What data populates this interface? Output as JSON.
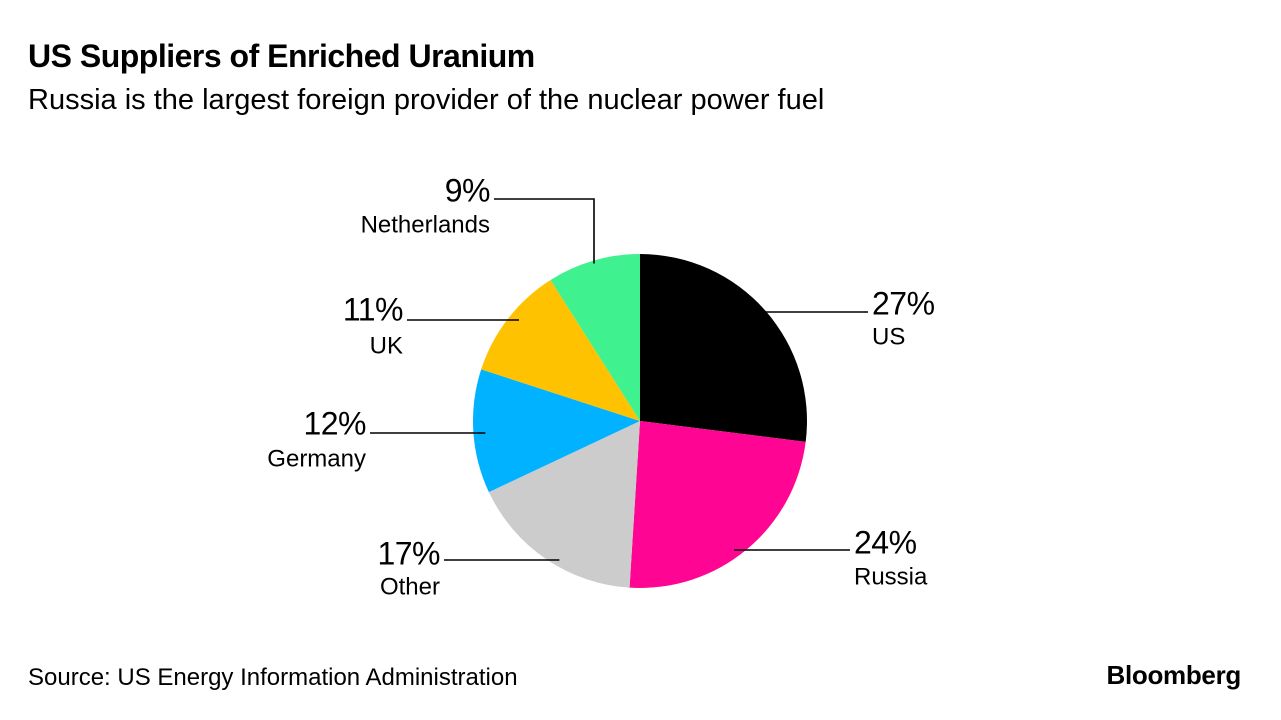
{
  "header": {
    "title": "US Suppliers of Enriched Uranium",
    "subtitle": "Russia is the largest foreign provider of the nuclear power fuel"
  },
  "footer": {
    "source": "Source: US Energy Information Administration",
    "brand": "Bloomberg"
  },
  "chart_data": {
    "type": "pie",
    "title": "US Suppliers of Enriched Uranium",
    "subtitle": "Russia is the largest foreign provider of the nuclear power fuel",
    "start": "12 o'clock, clockwise",
    "slices": [
      {
        "label": "US",
        "value": 27,
        "pct_label": "27%",
        "color": "#000000"
      },
      {
        "label": "Russia",
        "value": 24,
        "pct_label": "24%",
        "color": "#ff0593"
      },
      {
        "label": "Other",
        "value": 17,
        "pct_label": "17%",
        "color": "#cccccc"
      },
      {
        "label": "Germany",
        "value": 12,
        "pct_label": "12%",
        "color": "#00b2ff"
      },
      {
        "label": "UK",
        "value": 11,
        "pct_label": "11%",
        "color": "#ffc200"
      },
      {
        "label": "Netherlands",
        "value": 9,
        "pct_label": "9%",
        "color": "#40f18f"
      }
    ]
  }
}
